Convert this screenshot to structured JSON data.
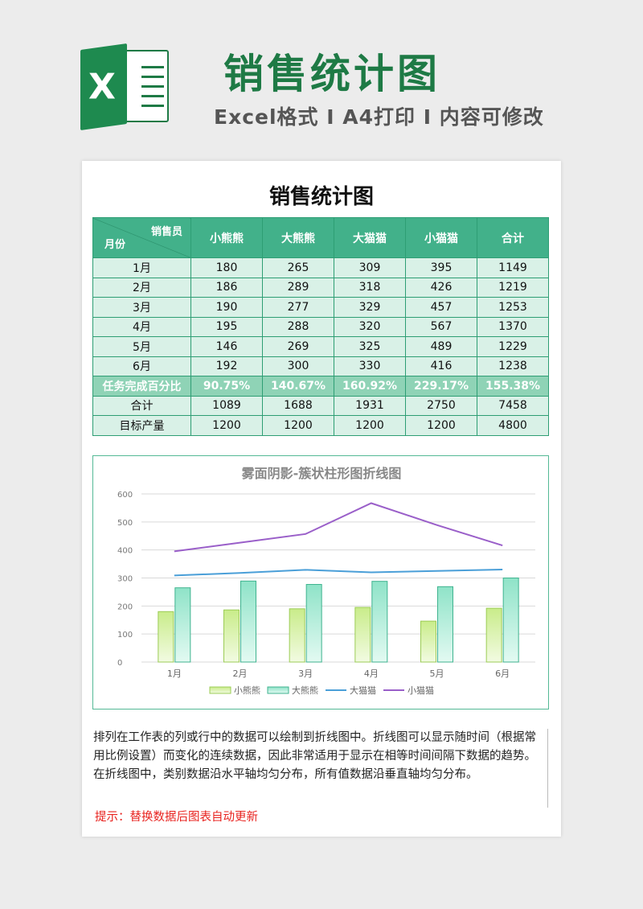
{
  "header": {
    "title": "销售统计图",
    "subtitle": "Excel格式 I A4打印 I 内容可修改",
    "logo_letter": "X"
  },
  "doc": {
    "title": "销售统计图",
    "table": {
      "corner_top": "销售员",
      "corner_bottom": "月份",
      "columns": [
        "小熊熊",
        "大熊熊",
        "大猫猫",
        "小猫猫",
        "合计"
      ],
      "rows": [
        {
          "label": "1月",
          "values": [
            "180",
            "265",
            "309",
            "395",
            "1149"
          ]
        },
        {
          "label": "2月",
          "values": [
            "186",
            "289",
            "318",
            "426",
            "1219"
          ]
        },
        {
          "label": "3月",
          "values": [
            "190",
            "277",
            "329",
            "457",
            "1253"
          ]
        },
        {
          "label": "4月",
          "values": [
            "195",
            "288",
            "320",
            "567",
            "1370"
          ]
        },
        {
          "label": "5月",
          "values": [
            "146",
            "269",
            "325",
            "489",
            "1229"
          ]
        },
        {
          "label": "6月",
          "values": [
            "192",
            "300",
            "330",
            "416",
            "1238"
          ]
        }
      ],
      "pct_row": {
        "label": "任务完成百分比",
        "values": [
          "90.75%",
          "140.67%",
          "160.92%",
          "229.17%",
          "155.38%"
        ]
      },
      "total_row": {
        "label": "合计",
        "values": [
          "1089",
          "1688",
          "1931",
          "2750",
          "7458"
        ]
      },
      "target_row": {
        "label": "目标产量",
        "values": [
          "1200",
          "1200",
          "1200",
          "1200",
          "4800"
        ]
      }
    },
    "description": "排列在工作表的列或行中的数据可以绘制到折线图中。折线图可以显示随时间（根据常用比例设置）而变化的连续数据，因此非常适用于显示在相等时间间隔下数据的趋势。在折线图中，类别数据沿水平轴均匀分布，所有值数据沿垂直轴均匀分布。",
    "tip": "提示：替换数据后图表自动更新"
  },
  "chart_data": {
    "type": "bar",
    "title": "雾面阴影-簇状柱形图折线图",
    "categories": [
      "1月",
      "2月",
      "3月",
      "4月",
      "5月",
      "6月"
    ],
    "ylim": [
      0,
      600
    ],
    "yticks": [
      "0",
      "100",
      "200",
      "300",
      "400",
      "500",
      "600"
    ],
    "grid": true,
    "legend_position": "bottom",
    "series": [
      {
        "name": "小熊熊",
        "kind": "bar",
        "values": [
          180,
          186,
          190,
          195,
          146,
          192
        ],
        "color": "#d4f0a0"
      },
      {
        "name": "大熊熊",
        "kind": "bar",
        "values": [
          265,
          289,
          277,
          288,
          269,
          300
        ],
        "color": "#a6ecd6"
      },
      {
        "name": "大猫猫",
        "kind": "line",
        "values": [
          309,
          318,
          329,
          320,
          325,
          330
        ],
        "color": "#4a9fd8"
      },
      {
        "name": "小猫猫",
        "kind": "line",
        "values": [
          395,
          426,
          457,
          567,
          489,
          416
        ],
        "color": "#9a5fc9"
      }
    ]
  },
  "colors": {
    "brand": "#1e7a45",
    "table_header": "#42b18a",
    "table_body": "#d9f1e7",
    "tip": "#e8231f"
  }
}
